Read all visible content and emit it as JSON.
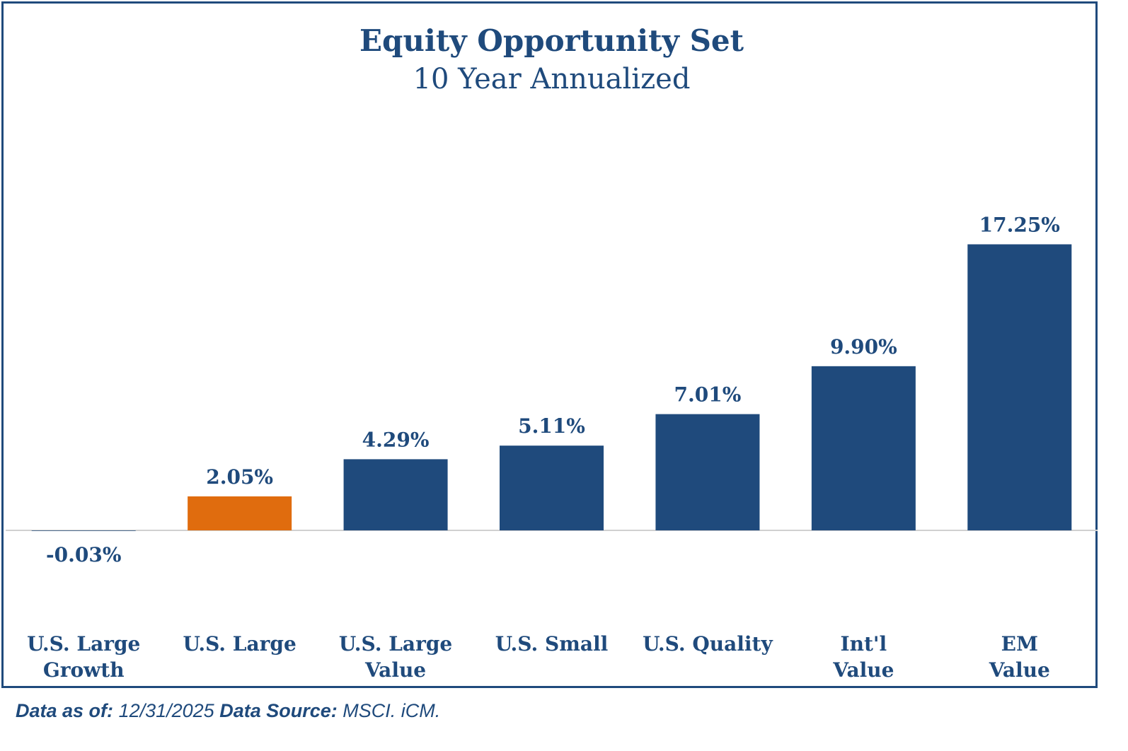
{
  "chart_data": {
    "type": "bar",
    "title": "Equity Opportunity Set",
    "subtitle": "10 Year Annualized",
    "categories": [
      [
        "U.S. Large",
        "Growth"
      ],
      [
        "U.S. Large"
      ],
      [
        "U.S. Large",
        "Value"
      ],
      [
        "U.S. Small"
      ],
      [
        "U.S. Quality"
      ],
      [
        "Int'l",
        "Value"
      ],
      [
        "EM",
        "Value"
      ]
    ],
    "values": [
      -0.03,
      2.05,
      4.29,
      5.11,
      7.01,
      9.9,
      17.25
    ],
    "value_labels": [
      "-0.03%",
      "2.05%",
      "4.29%",
      "5.11%",
      "7.01%",
      "9.90%",
      "17.25%"
    ],
    "highlight_index": 1,
    "colors": {
      "default": "#1f4a7c",
      "highlight": "#e06c0e",
      "baseline": "#d0d0d0",
      "text": "#1f4a7c"
    },
    "xlabel": "",
    "ylabel": "",
    "grid": false,
    "legend": "none"
  },
  "footer": {
    "date_label": "Data as of:",
    "date_value": "12/31/2025",
    "source_label": "Data Source:",
    "source_value": "MSCI. iCM."
  }
}
